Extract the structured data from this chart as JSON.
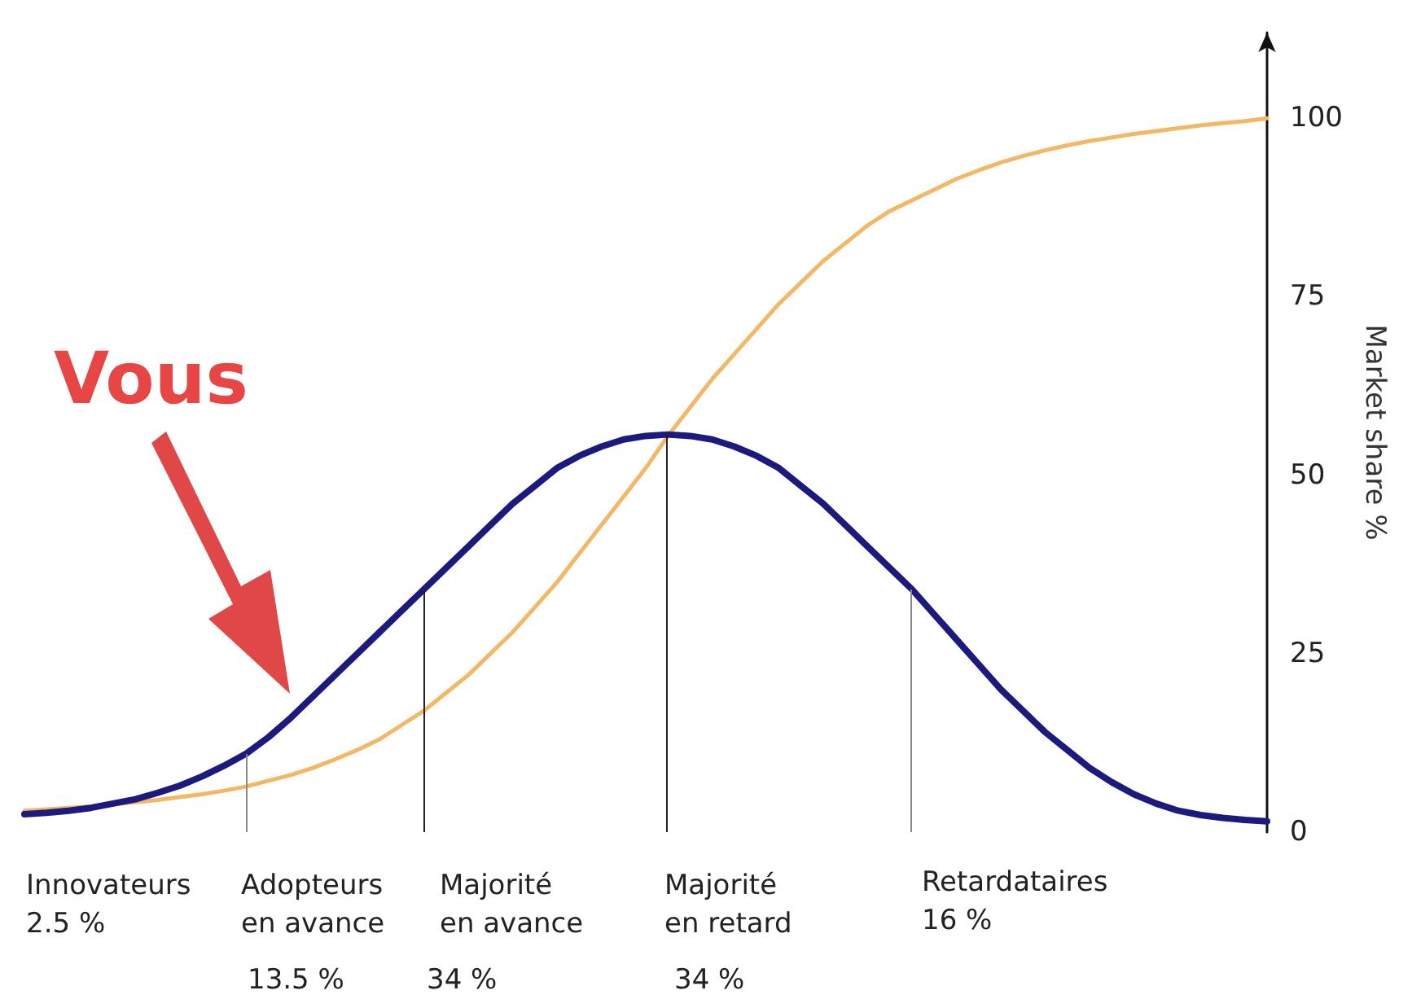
{
  "chart_data": {
    "type": "line",
    "ylabel": "Market share %",
    "marker": "none",
    "line_style": "solid",
    "tick_labels": "y",
    "categories": [
      null,
      null,
      null,
      null,
      null,
      null,
      null,
      null,
      null,
      null,
      null,
      null,
      null,
      null,
      null,
      null,
      null,
      null,
      null,
      null,
      null,
      null,
      null,
      null,
      null,
      null,
      null,
      null,
      null,
      null,
      null,
      null,
      null,
      null,
      null,
      null,
      null,
      null,
      null,
      null,
      null,
      null,
      null,
      null,
      null,
      null,
      null,
      null,
      null,
      null,
      null,
      null,
      null,
      null,
      null,
      null,
      null
    ],
    "series": [
      {
        "color": "#f2b866",
        "values": [
          3,
          3.2,
          3.4,
          3.6,
          3.9,
          4.2,
          4.5,
          4.9,
          5.3,
          5.8,
          6.4,
          7.2,
          8,
          9,
          10.2,
          11.5,
          13,
          15,
          17,
          19.5,
          22,
          25,
          28,
          31.5,
          35,
          39,
          43,
          47,
          51,
          55.5,
          59.5,
          63.5,
          67,
          70.5,
          74,
          77,
          80,
          82.5,
          85,
          87,
          88.5,
          90,
          91.5,
          92.7,
          93.8,
          94.7,
          95.5,
          96.2,
          96.8,
          97.3,
          97.8,
          98.2,
          98.6,
          99,
          99.3,
          99.6,
          100
        ]
      },
      {
        "color": "#1c1a7e",
        "values": [
          2.5,
          2.7,
          3,
          3.4,
          4,
          4.6,
          5.5,
          6.5,
          7.8,
          9.3,
          11,
          13.3,
          16,
          19,
          22,
          25,
          28,
          31,
          34,
          37,
          40,
          43,
          46,
          48.5,
          51,
          52.7,
          54,
          55,
          55.5,
          55.7,
          55.5,
          55,
          54,
          52.7,
          51,
          48.5,
          46,
          43,
          40,
          37,
          34,
          30.5,
          27,
          23.5,
          20,
          17,
          14,
          11.5,
          9,
          7,
          5.3,
          4,
          3,
          2.4,
          2,
          1.7,
          1.5
        ]
      }
    ],
    "ylim": [
      0,
      112
    ],
    "yticks": [
      0,
      25,
      50,
      75,
      100
    ],
    "annotations": [
      "Innovateurs\n2.5 %",
      "Adopteurs\nen avance",
      "13.5 %",
      "Majorité\nen avance",
      "34 %",
      "Majorité\nen retard",
      "34 %",
      "Retardataires\n16 %",
      "Vous"
    ]
  }
}
